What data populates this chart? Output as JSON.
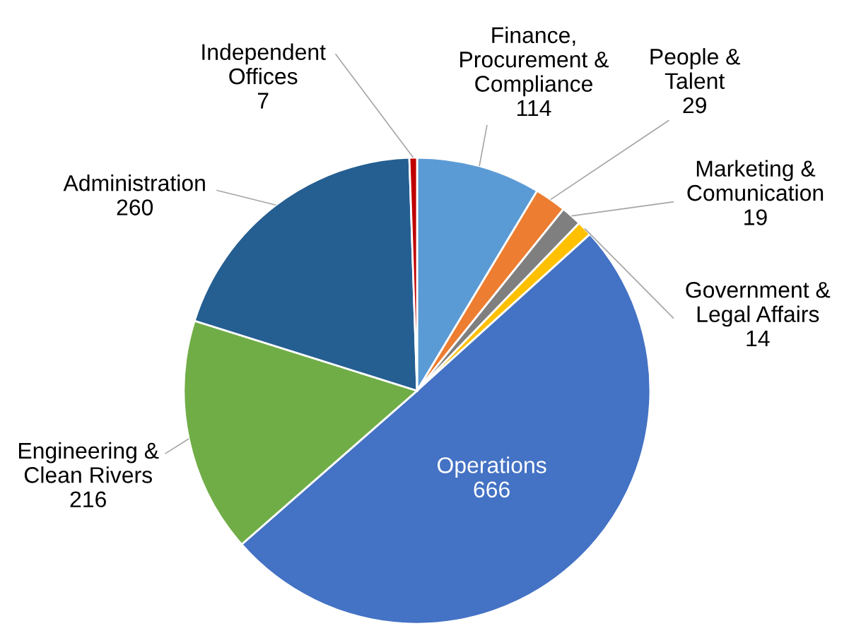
{
  "chart_data": {
    "type": "pie",
    "categories": [
      "Finance,\nProcurement &\nCompliance",
      "People &\nTalent",
      "Marketing &\nComunication",
      "Government &\nLegal Affairs",
      "Operations",
      "Engineering &\nClean Rivers",
      "Administration",
      "Independent\nOffices"
    ],
    "values": [
      114,
      29,
      19,
      14,
      666,
      216,
      260,
      7
    ],
    "colors": [
      "#5b9bd5",
      "#ed7d31",
      "#7f7f7f",
      "#ffc000",
      "#4472c4",
      "#70ad47",
      "#255e91",
      "#c00000"
    ],
    "data_labels": true,
    "legend": false
  }
}
